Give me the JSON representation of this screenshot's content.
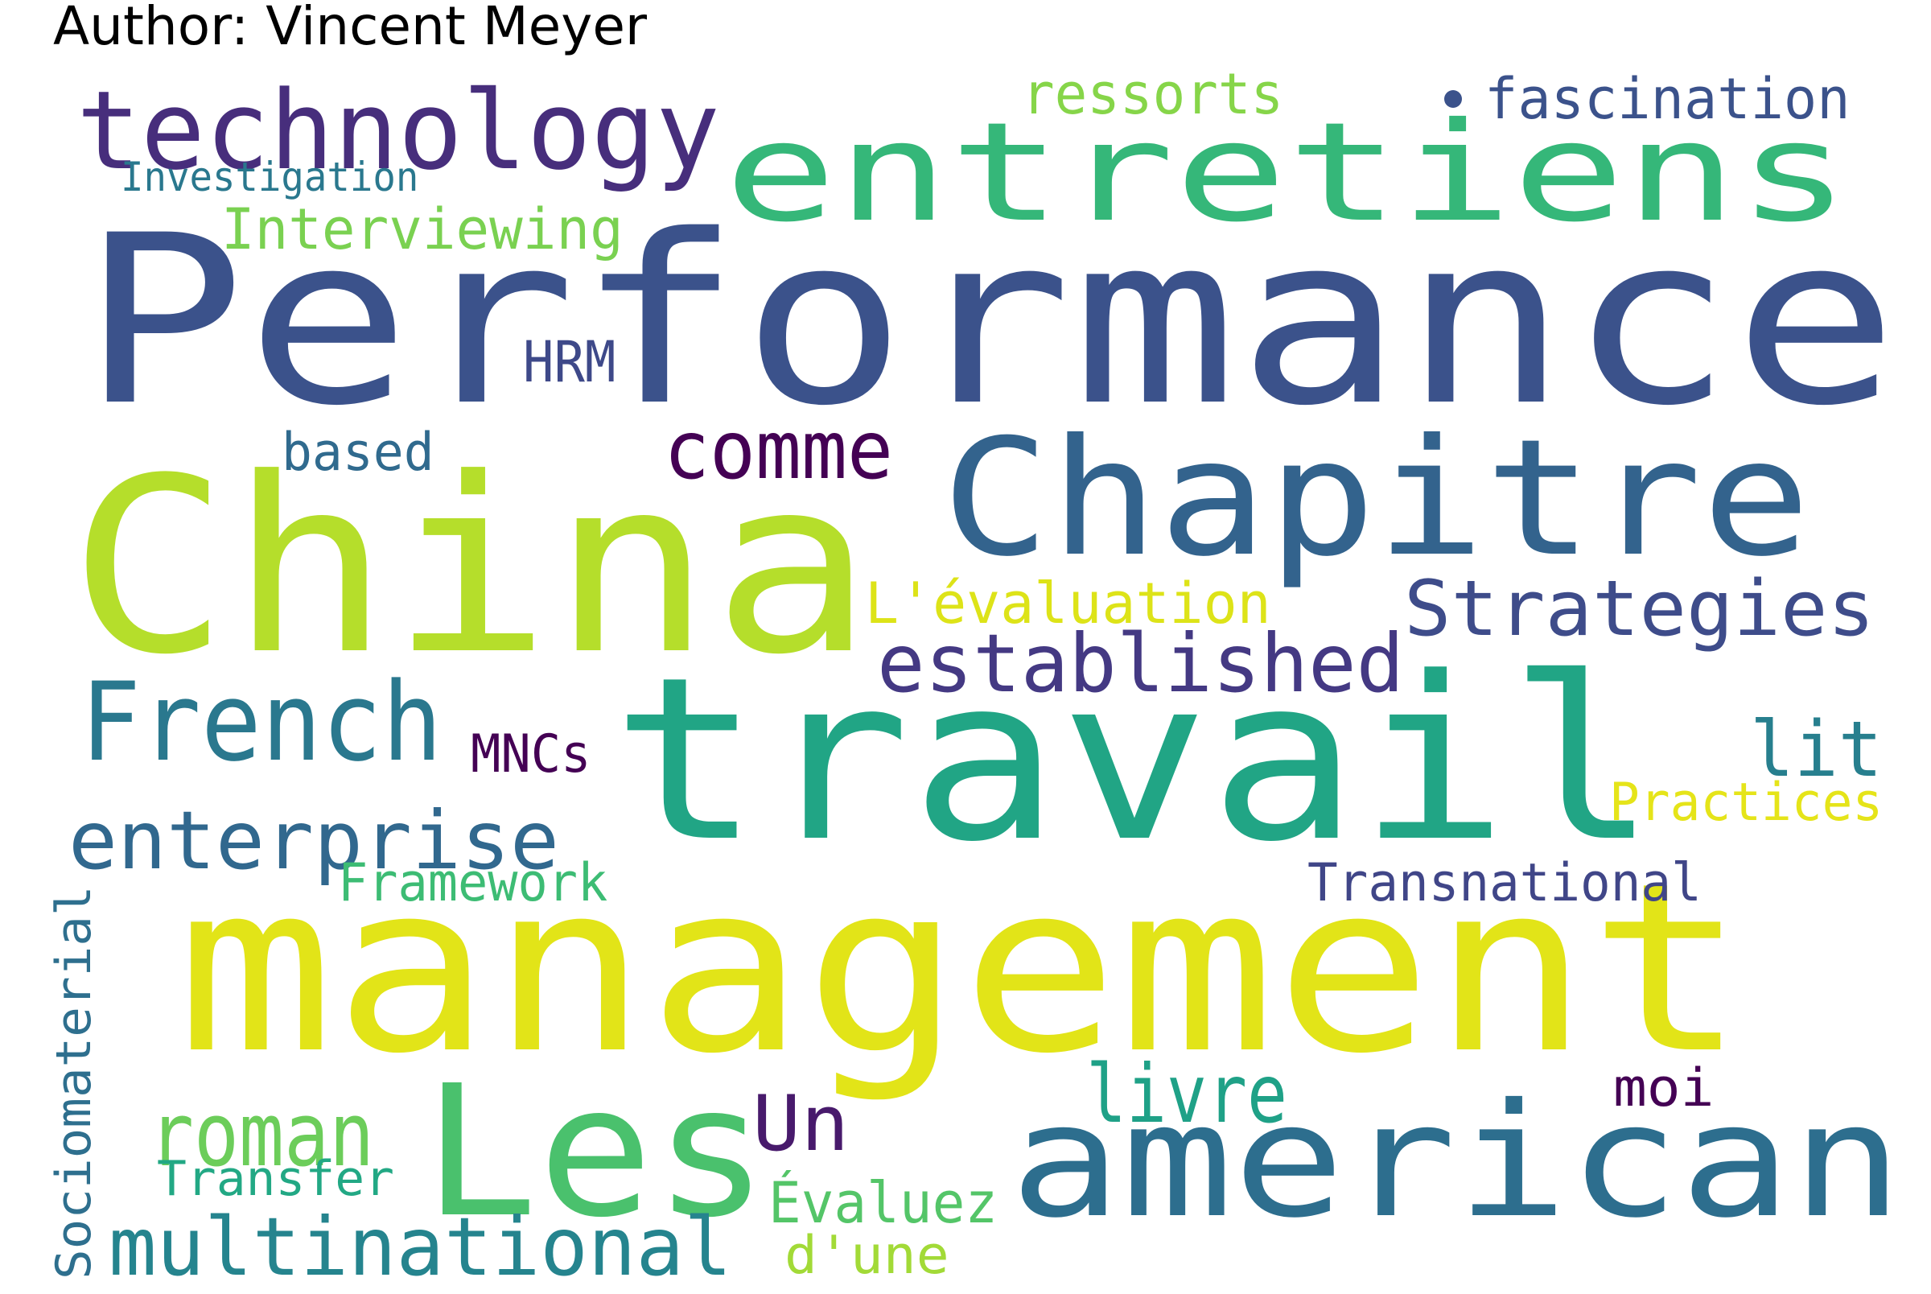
{
  "author": "Author: Vincent Meyer",
  "words": [
    {
      "text": "Performance",
      "color": "#3b528b"
    },
    {
      "text": "China",
      "color": "#b5de2b"
    },
    {
      "text": "management",
      "color": "#e2e418"
    },
    {
      "text": "travail",
      "color": "#21a585"
    },
    {
      "text": "entretiens",
      "color": "#35b779"
    },
    {
      "text": "Chapitre",
      "color": "#33638d"
    },
    {
      "text": "american",
      "color": "#2d6e8e"
    },
    {
      "text": "technology",
      "color": "#472e7c"
    },
    {
      "text": "Les",
      "color": "#4ac16d"
    },
    {
      "text": "French",
      "color": "#2a788e"
    },
    {
      "text": "multinational",
      "color": "#25848e"
    },
    {
      "text": "enterprise",
      "color": "#31688e"
    },
    {
      "text": "established",
      "color": "#443983"
    },
    {
      "text": "Strategies",
      "color": "#3e4c8a"
    },
    {
      "text": "comme",
      "color": "#440154"
    },
    {
      "text": "roman",
      "color": "#6ccd5a"
    },
    {
      "text": "livre",
      "color": "#1fa187"
    },
    {
      "text": "Un",
      "color": "#481a6c"
    },
    {
      "text": "lit",
      "color": "#277f8e"
    },
    {
      "text": "fascination",
      "color": "#3b528b"
    },
    {
      "text": "ressorts",
      "color": "#86d549"
    },
    {
      "text": "Interviewing",
      "color": "#7ad151"
    },
    {
      "text": "Investigation",
      "color": "#2a788e"
    },
    {
      "text": "HRM",
      "color": "#3e4989"
    },
    {
      "text": "based",
      "color": "#306a8e"
    },
    {
      "text": "L'évaluation",
      "color": "#dde318"
    },
    {
      "text": "MNCs",
      "color": "#440154"
    },
    {
      "text": "Practices",
      "color": "#e5e419"
    },
    {
      "text": "Framework",
      "color": "#3dbc74"
    },
    {
      "text": "Transnational",
      "color": "#404688"
    },
    {
      "text": "moi",
      "color": "#440154"
    },
    {
      "text": "Transfer",
      "color": "#22a884"
    },
    {
      "text": "Évaluez",
      "color": "#54c568"
    },
    {
      "text": "d'une",
      "color": "#a2da37"
    },
    {
      "text": "Sociomaterial",
      "color": "#2e6f8e"
    }
  ]
}
